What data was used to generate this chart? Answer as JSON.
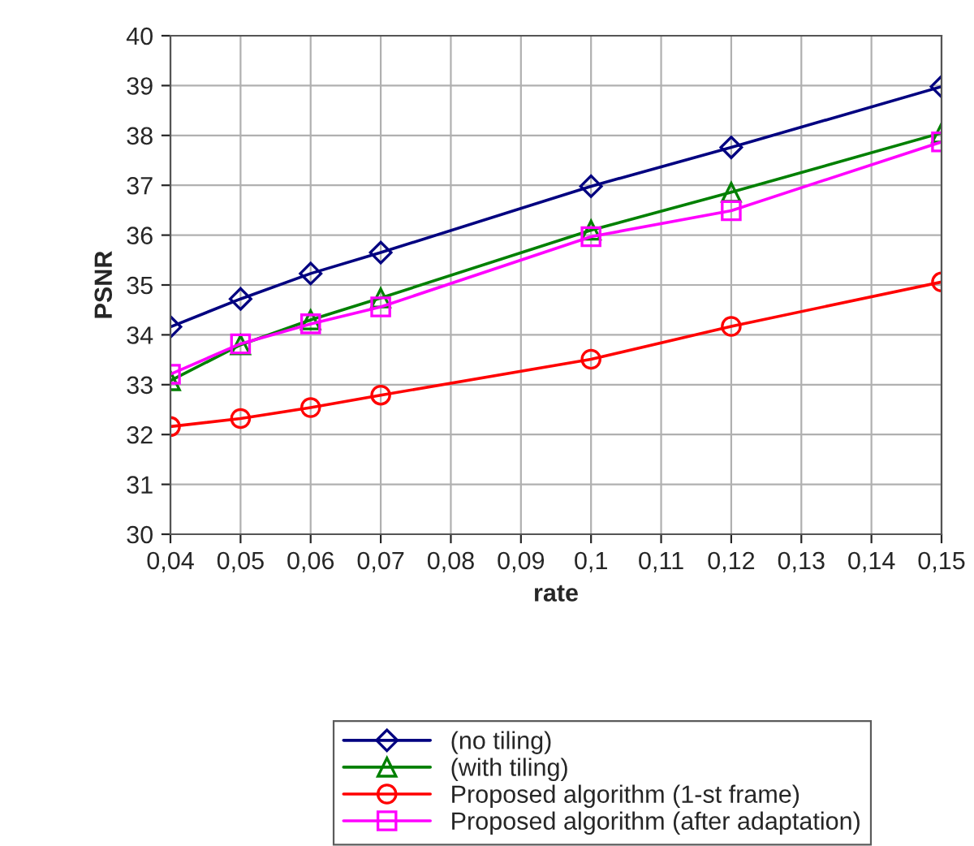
{
  "chart_data": {
    "type": "line",
    "xlabel": "rate",
    "ylabel": "PSNR",
    "x": [
      0.04,
      0.05,
      0.06,
      0.07,
      0.1,
      0.12,
      0.15
    ],
    "series": [
      {
        "name": "(no tiling)",
        "color": "#000080",
        "marker": "diamond",
        "values": [
          34.16,
          34.72,
          35.23,
          35.65,
          36.98,
          37.76,
          38.98
        ]
      },
      {
        "name": "(with tiling)",
        "color": "#008000",
        "marker": "triangle",
        "values": [
          33.08,
          33.8,
          34.3,
          34.74,
          36.1,
          36.86,
          38.05
        ]
      },
      {
        "name": "Proposed algorithm (1-st frame)",
        "color": "#ff0000",
        "marker": "circle",
        "values": [
          32.16,
          32.32,
          32.54,
          32.79,
          33.51,
          34.17,
          35.06
        ]
      },
      {
        "name": "Proposed algorithm (after adaptation)",
        "color": "#ff00ff",
        "marker": "square",
        "values": [
          33.21,
          33.82,
          34.22,
          34.56,
          35.97,
          36.49,
          37.87
        ]
      }
    ],
    "xlim": [
      0.04,
      0.15
    ],
    "xticks": [
      {
        "value": 0.04,
        "label": "0,04"
      },
      {
        "value": 0.05,
        "label": "0,05"
      },
      {
        "value": 0.06,
        "label": "0,06"
      },
      {
        "value": 0.07,
        "label": "0,07"
      },
      {
        "value": 0.08,
        "label": "0,08"
      },
      {
        "value": 0.09,
        "label": "0,09"
      },
      {
        "value": 0.1,
        "label": "0,1"
      },
      {
        "value": 0.11,
        "label": "0,11"
      },
      {
        "value": 0.12,
        "label": "0,12"
      },
      {
        "value": 0.13,
        "label": "0,13"
      },
      {
        "value": 0.14,
        "label": "0,14"
      },
      {
        "value": 0.15,
        "label": "0,15"
      }
    ],
    "ylim": [
      30,
      40
    ],
    "yticks": [
      30,
      31,
      32,
      33,
      34,
      35,
      36,
      37,
      38,
      39,
      40
    ],
    "grid": true,
    "legend": "bottom",
    "line_style": "solid"
  }
}
